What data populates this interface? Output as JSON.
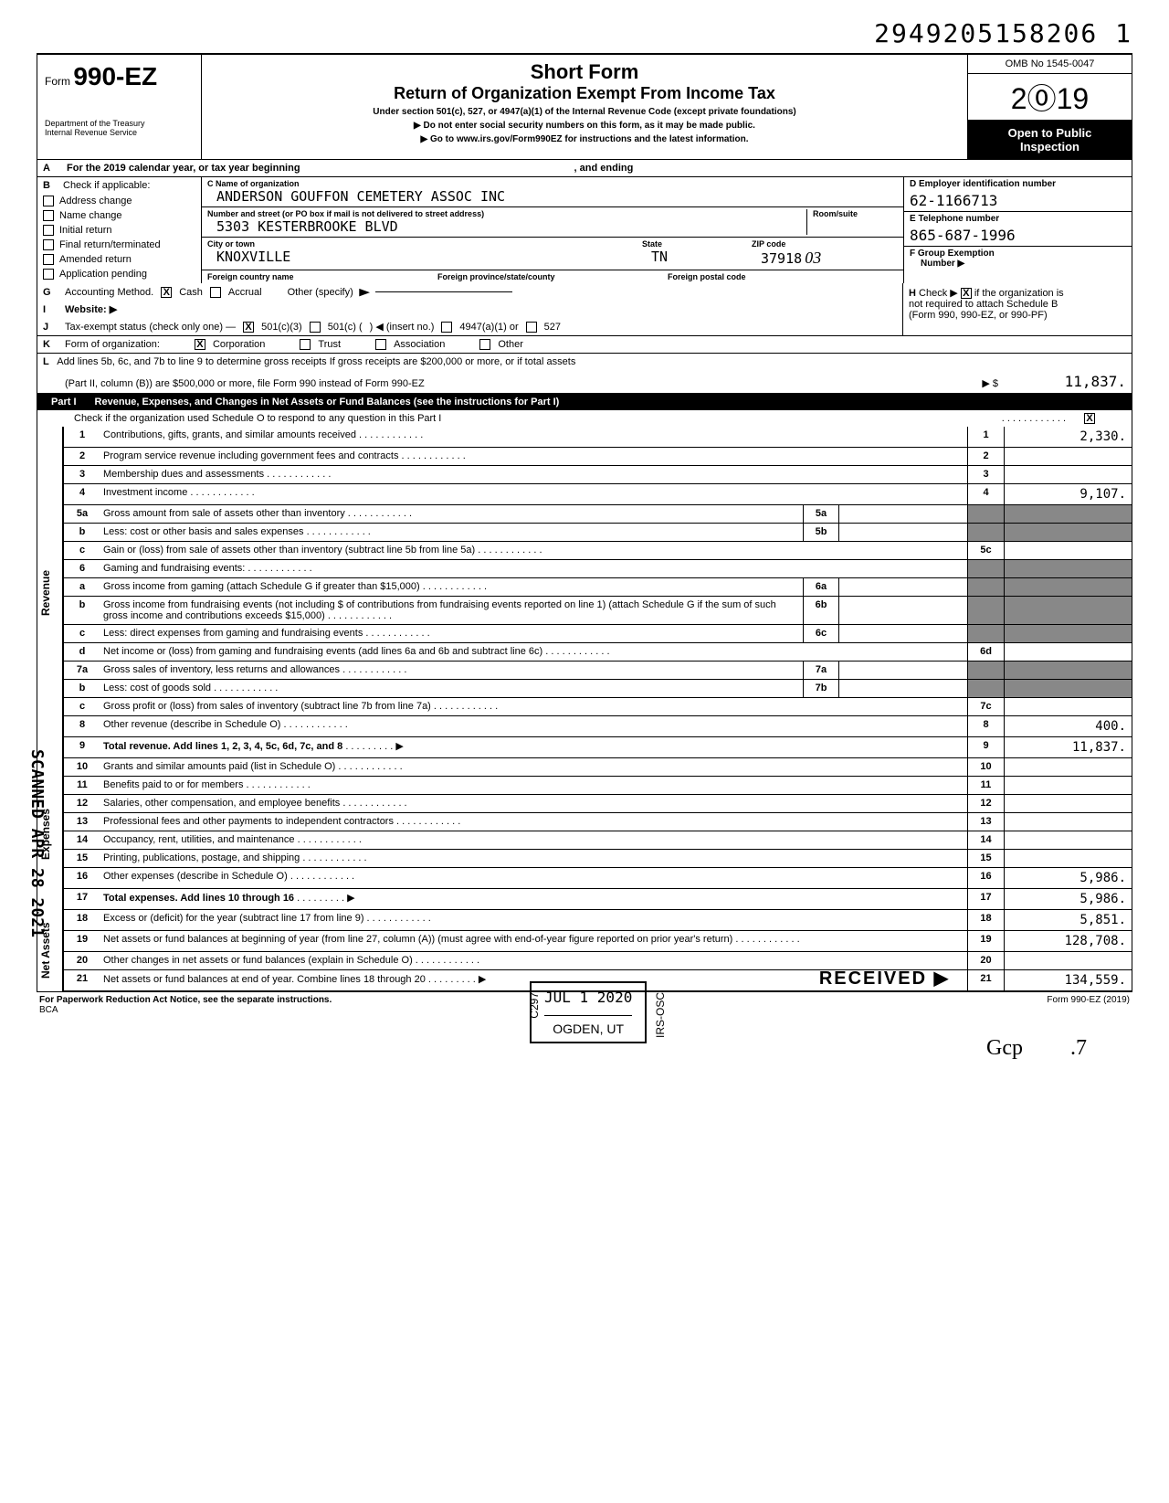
{
  "docNumber": "2949205158206 1",
  "header": {
    "formLabel": "Form",
    "formNumber": "990-EZ",
    "dept1": "Department of the Treasury",
    "dept2": "Internal Revenue Service",
    "title": "Short Form",
    "subtitle": "Return of Organization Exempt From Income Tax",
    "line1": "Under section 501(c), 527, or 4947(a)(1) of the Internal Revenue Code (except private foundations)",
    "line2": "Do not enter social security numbers on this form, as it may be made public.",
    "line3": "Go to www.irs.gov/Form990EZ for instructions and the latest information.",
    "omb": "OMB No 1545-0047",
    "year": "2019",
    "open1": "Open to Public",
    "open2": "Inspection"
  },
  "rowA": {
    "letter": "A",
    "text1": "For the 2019 calendar year, or tax year beginning",
    "text2": ", and ending"
  },
  "sectionB": {
    "letter": "B",
    "checkLabel": "Check if applicable:",
    "checks": [
      "Address change",
      "Name change",
      "Initial return",
      "Final return/terminated",
      "Amended return",
      "Application pending"
    ],
    "cLabel": "C  Name of organization",
    "orgName": "ANDERSON GOUFFON CEMETERY ASSOC INC",
    "streetLabel": "Number and street (or PO box if mail is not delivered to street address)",
    "roomLabel": "Room/suite",
    "street": "5303 KESTERBROOKE BLVD",
    "cityLabel": "City or town",
    "stateLabel": "State",
    "zipLabel": "ZIP code",
    "city": "KNOXVILLE",
    "state": "TN",
    "zip": "37918",
    "zipSuffix": "03",
    "foreignCountryLabel": "Foreign country name",
    "foreignProvLabel": "Foreign province/state/county",
    "foreignPostalLabel": "Foreign postal code",
    "dLabel": "D  Employer identification number",
    "ein": "62-1166713",
    "eLabel": "E  Telephone number",
    "phone": "865-687-1996",
    "fLabel": "F  Group Exemption",
    "fLabel2": "Number ▶"
  },
  "sectionG": {
    "g": "G",
    "gLabel": "Accounting Method.",
    "cash": "Cash",
    "accrual": "Accrual",
    "other": "Other (specify)",
    "h": "H",
    "hText1": "Check ▶",
    "hText2": "if the organization is",
    "hText3": "not required to attach Schedule B",
    "hText4": "(Form 990, 990-EZ, or 990-PF)",
    "i": "I",
    "iLabel": "Website: ▶",
    "j": "J",
    "jLabel": "Tax-exempt status (check only one) —",
    "j501c3": "501(c)(3)",
    "j501c": "501(c) (",
    "jInsert": ") ◀ (insert no.)",
    "j4947": "4947(a)(1) or",
    "j527": "527",
    "k": "K",
    "kLabel": "Form of organization:",
    "kCorp": "Corporation",
    "kTrust": "Trust",
    "kAssoc": "Association",
    "kOther": "Other"
  },
  "sectionL": {
    "l": "L",
    "lText1": "Add lines 5b, 6c, and 7b to line 9 to determine gross receipts  If gross receipts are $200,000 or more, or if total assets",
    "lText2": "(Part II, column (B)) are $500,000 or more, file Form 990 instead of Form 990-EZ",
    "lAmount": "11,837."
  },
  "part1": {
    "label": "Part I",
    "title": "Revenue, Expenses, and Changes in Net Assets or Fund Balances (see the instructions for Part I)",
    "schedO": "Check if the organization used Schedule O to respond to any question in this Part I"
  },
  "sideLabels": {
    "revenue": "Revenue",
    "expenses": "Expenses",
    "netAssets": "Net Assets"
  },
  "lines": [
    {
      "num": "1",
      "desc": "Contributions, gifts, grants, and similar amounts received",
      "rnum": "1",
      "rval": "2,330."
    },
    {
      "num": "2",
      "desc": "Program service revenue including government fees and contracts",
      "rnum": "2",
      "rval": ""
    },
    {
      "num": "3",
      "desc": "Membership dues and assessments",
      "rnum": "3",
      "rval": ""
    },
    {
      "num": "4",
      "desc": "Investment income",
      "rnum": "4",
      "rval": "9,107."
    },
    {
      "num": "5a",
      "desc": "Gross amount from sale of assets other than inventory",
      "mnum": "5a",
      "shaded": true
    },
    {
      "num": "b",
      "desc": "Less: cost or other basis and sales expenses",
      "mnum": "5b",
      "shaded": true
    },
    {
      "num": "c",
      "desc": "Gain or (loss) from sale of assets other than inventory (subtract line 5b from line 5a)",
      "rnum": "5c",
      "rval": ""
    },
    {
      "num": "6",
      "desc": "Gaming and fundraising events:",
      "shaded": true
    },
    {
      "num": "a",
      "desc": "Gross income from gaming (attach Schedule G if greater than $15,000)",
      "mnum": "6a",
      "shaded": true
    },
    {
      "num": "b",
      "desc": "Gross income from fundraising events (not including   $             of contributions from fundraising events reported on line 1) (attach Schedule G if the sum of such gross income and contributions exceeds $15,000)",
      "mnum": "6b",
      "shaded": true
    },
    {
      "num": "c",
      "desc": "Less: direct expenses from gaming and fundraising events",
      "mnum": "6c",
      "shaded": true
    },
    {
      "num": "d",
      "desc": "Net income or (loss) from gaming and fundraising events (add lines 6a and 6b and subtract line 6c)",
      "rnum": "6d",
      "rval": ""
    },
    {
      "num": "7a",
      "desc": "Gross sales of inventory, less returns and allowances",
      "mnum": "7a",
      "shaded": true
    },
    {
      "num": "b",
      "desc": "Less: cost of goods sold",
      "mnum": "7b",
      "shaded": true
    },
    {
      "num": "c",
      "desc": "Gross profit or (loss) from sales of inventory (subtract line 7b from line 7a)",
      "rnum": "7c",
      "rval": ""
    },
    {
      "num": "8",
      "desc": "Other revenue (describe in Schedule O)",
      "rnum": "8",
      "rval": "400."
    },
    {
      "num": "9",
      "desc": "Total revenue. Add lines 1, 2, 3, 4, 5c, 6d, 7c, and 8",
      "rnum": "9",
      "rval": "11,837.",
      "bold": true,
      "arrow": true
    }
  ],
  "expenses": [
    {
      "num": "10",
      "desc": "Grants and similar amounts paid (list in Schedule O)",
      "rnum": "10"
    },
    {
      "num": "11",
      "desc": "Benefits paid to or for members",
      "rnum": "11"
    },
    {
      "num": "12",
      "desc": "Salaries, other compensation, and employee benefits",
      "rnum": "12"
    },
    {
      "num": "13",
      "desc": "Professional fees and other payments to independent contractors",
      "rnum": "13"
    },
    {
      "num": "14",
      "desc": "Occupancy, rent, utilities, and maintenance",
      "rnum": "14"
    },
    {
      "num": "15",
      "desc": "Printing, publications, postage, and shipping",
      "rnum": "15"
    },
    {
      "num": "16",
      "desc": "Other expenses (describe in Schedule O)",
      "rnum": "16",
      "rval": "5,986."
    },
    {
      "num": "17",
      "desc": "Total expenses. Add lines 10 through 16",
      "rnum": "17",
      "rval": "5,986.",
      "bold": true,
      "arrow": true
    }
  ],
  "netAssets": [
    {
      "num": "18",
      "desc": "Excess or (deficit) for the year (subtract line 17 from line 9)",
      "rnum": "18",
      "rval": "5,851."
    },
    {
      "num": "19",
      "desc": "Net assets or fund balances at beginning of year (from line 27, column (A)) (must agree with end-of-year figure reported on prior year's return)",
      "rnum": "19",
      "rval": "128,708."
    },
    {
      "num": "20",
      "desc": "Other changes in net assets or fund balances (explain in Schedule O)",
      "rnum": "20",
      "rval": ""
    },
    {
      "num": "21",
      "desc": "Net assets or fund balances at end of year. Combine lines 18 through 20",
      "rnum": "21",
      "rval": "134,559.",
      "arrow": true
    }
  ],
  "footer": {
    "paperwork": "For Paperwork Reduction Act Notice, see the separate instructions.",
    "bca": "BCA",
    "formRef": "Form 990-EZ (2019)"
  },
  "stamps": {
    "scanned": "SCANNED APR 28 2021",
    "received": "RECEIVED ▶",
    "c297": "C297",
    "date": "JUL 1   2020",
    "ogden": "OGDEN, UT",
    "irsOsc": "IRS-OSC",
    "gcp": "Gcp",
    "pg": "7"
  }
}
